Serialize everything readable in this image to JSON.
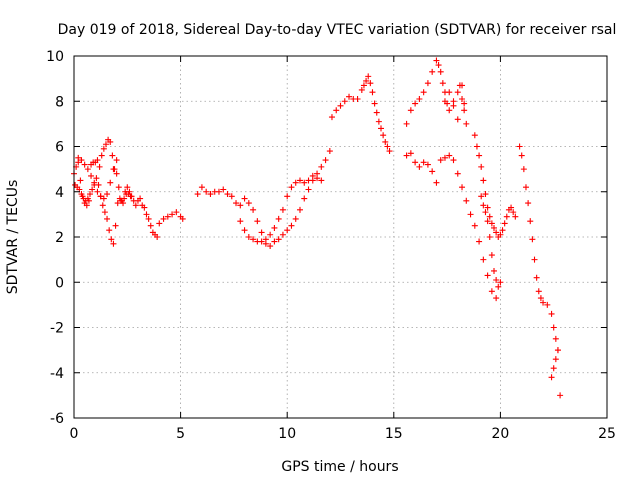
{
  "chart_data": {
    "type": "scatter",
    "title": "Day 019 of 2018, Sidereal Day-to-day VTEC variation (SDTVAR) for receiver rsal",
    "xlabel": "GPS time / hours",
    "ylabel": "SDTVAR / TECUs",
    "xlim": [
      0,
      25
    ],
    "ylim": [
      -6,
      10
    ],
    "x_ticks": [
      0,
      5,
      10,
      15,
      20,
      25
    ],
    "y_ticks": [
      -6,
      -4,
      -2,
      0,
      2,
      4,
      6,
      8,
      10
    ],
    "grid": true,
    "marker": "plus",
    "color": "#ff0000",
    "series": [
      {
        "x": [
          0.0,
          0.1,
          0.2,
          0.3,
          0.4,
          0.5,
          0.6,
          0.7,
          0.8,
          0.9,
          1.0,
          1.1,
          1.2,
          1.3,
          1.4,
          1.5,
          1.6,
          1.7,
          1.8,
          1.9,
          2.0,
          2.1,
          2.2,
          2.3,
          2.4,
          2.5,
          2.6,
          2.7,
          2.8,
          2.9,
          3.0,
          3.1,
          3.2,
          3.3,
          3.4,
          3.5,
          3.6,
          3.7,
          3.8,
          3.9,
          4.0,
          4.2,
          4.4,
          4.6,
          4.8,
          5.0,
          5.1
        ],
        "y": [
          4.8,
          5.1,
          5.3,
          4.5,
          3.8,
          3.5,
          3.4,
          3.6,
          5.2,
          5.3,
          5.3,
          5.4,
          5.1,
          5.6,
          5.9,
          6.1,
          6.3,
          6.2,
          5.6,
          5.0,
          4.8,
          4.2,
          3.6,
          3.5,
          4.0,
          4.2,
          4.0,
          3.8,
          3.6,
          3.4,
          3.6,
          3.7,
          3.4,
          3.3,
          3.0,
          2.8,
          2.5,
          2.2,
          2.1,
          2.0,
          2.6,
          2.8,
          2.9,
          3.0,
          3.1,
          2.9,
          2.8
        ]
      },
      {
        "x": [
          0.05,
          0.15,
          0.25,
          0.35,
          0.45,
          0.55,
          0.65,
          0.75,
          0.85,
          0.95,
          1.05,
          1.15,
          1.25,
          1.35,
          1.45,
          1.55,
          1.65,
          1.75,
          1.85,
          1.95,
          2.05,
          2.15,
          2.25,
          2.35,
          2.45,
          2.55,
          2.65
        ],
        "y": [
          4.3,
          4.2,
          4.1,
          3.9,
          3.7,
          3.6,
          3.7,
          3.9,
          4.1,
          4.3,
          4.6,
          4.3,
          3.8,
          3.4,
          3.1,
          2.8,
          2.3,
          1.9,
          1.7,
          2.5,
          3.5,
          3.7,
          3.6,
          3.7,
          3.9,
          3.9,
          3.8
        ]
      },
      {
        "x": [
          0.2,
          0.35,
          0.5,
          0.65,
          0.8,
          0.95,
          1.1,
          1.25,
          1.4,
          1.55,
          1.7,
          1.85,
          2.0
        ],
        "y": [
          5.5,
          5.4,
          5.2,
          5.0,
          4.7,
          4.4,
          4.0,
          3.8,
          3.7,
          3.9,
          4.4,
          5.0,
          5.4
        ]
      },
      {
        "x": [
          5.8,
          6.0,
          6.2,
          6.4,
          6.6,
          6.8,
          7.0,
          7.2,
          7.4,
          7.6,
          7.8,
          8.0,
          8.2,
          8.4,
          8.6,
          8.8,
          9.0,
          9.2,
          9.4,
          9.6,
          9.8,
          10.0,
          10.2,
          10.4,
          10.6,
          10.8,
          11.0,
          11.2,
          11.4,
          11.6,
          11.8,
          12.0
        ],
        "y": [
          3.9,
          4.2,
          4.0,
          3.9,
          4.0,
          4.0,
          4.1,
          3.9,
          3.8,
          3.5,
          3.4,
          3.7,
          3.5,
          3.2,
          2.7,
          2.2,
          1.7,
          1.6,
          1.8,
          1.9,
          2.1,
          2.3,
          2.5,
          2.8,
          3.2,
          3.7,
          4.1,
          4.5,
          4.8,
          5.1,
          5.4,
          5.8
        ]
      },
      {
        "x": [
          7.8,
          8.0,
          8.2,
          8.4,
          8.6,
          8.8,
          9.0,
          9.2,
          9.4,
          9.6,
          9.8,
          10.0,
          10.2,
          10.4,
          10.6,
          10.8,
          11.0,
          11.2,
          11.4,
          11.6
        ],
        "y": [
          2.7,
          2.3,
          2.0,
          1.9,
          1.8,
          1.8,
          1.9,
          2.1,
          2.4,
          2.8,
          3.2,
          3.8,
          4.2,
          4.4,
          4.5,
          4.4,
          4.5,
          4.7,
          4.6,
          4.5
        ]
      },
      {
        "x": [
          12.1,
          12.3,
          12.5,
          12.7,
          12.9,
          13.1,
          13.3,
          13.5,
          13.6,
          13.7,
          13.8,
          13.9,
          14.0,
          14.1,
          14.2,
          14.3,
          14.4,
          14.5,
          14.6,
          14.7,
          14.8
        ],
        "y": [
          7.3,
          7.6,
          7.8,
          8.0,
          8.2,
          8.1,
          8.1,
          8.5,
          8.7,
          8.9,
          9.1,
          8.8,
          8.4,
          7.9,
          7.5,
          7.1,
          6.8,
          6.5,
          6.2,
          6.0,
          5.8
        ]
      },
      {
        "x": [
          15.6,
          15.8,
          16.0,
          16.2,
          16.4,
          16.6,
          16.8,
          17.0,
          17.1,
          17.2,
          17.3,
          17.4,
          17.5,
          17.6,
          17.8,
          18.0,
          18.2,
          18.3
        ],
        "y": [
          7.0,
          7.6,
          7.9,
          8.1,
          8.4,
          8.8,
          9.3,
          9.8,
          9.6,
          9.3,
          8.8,
          8.4,
          7.9,
          7.6,
          8.0,
          8.4,
          8.7,
          7.9
        ]
      },
      {
        "x": [
          15.6,
          15.8,
          16.0,
          16.2,
          16.4,
          16.6,
          16.8,
          17.0,
          17.2,
          17.4,
          17.6,
          17.8,
          18.0,
          18.2,
          18.4,
          18.6,
          18.8,
          19.0,
          19.2,
          19.4,
          19.6,
          19.8
        ],
        "y": [
          5.6,
          5.7,
          5.3,
          5.1,
          5.3,
          5.2,
          4.9,
          4.4,
          5.4,
          5.5,
          5.6,
          5.4,
          4.8,
          4.2,
          3.6,
          3.0,
          2.5,
          1.8,
          1.0,
          0.3,
          -0.4,
          -0.7
        ]
      },
      {
        "x": [
          17.4,
          17.6,
          17.8,
          18.0,
          18.1,
          18.2,
          18.3,
          18.4
        ],
        "y": [
          8.0,
          8.4,
          7.8,
          7.2,
          8.7,
          8.1,
          7.6,
          7.0
        ]
      },
      {
        "x": [
          18.8,
          18.9,
          19.0,
          19.1,
          19.2,
          19.3,
          19.4,
          19.5,
          19.6,
          19.7,
          19.8,
          19.9,
          20.0,
          20.1,
          20.2,
          20.3,
          20.4,
          20.5,
          20.6,
          20.7
        ],
        "y": [
          6.5,
          6.0,
          5.6,
          5.1,
          4.5,
          3.9,
          3.3,
          2.9,
          2.6,
          2.4,
          2.2,
          2.0,
          2.1,
          2.3,
          2.6,
          2.9,
          3.2,
          3.3,
          3.1,
          2.9
        ]
      },
      {
        "x": [
          19.1,
          19.2,
          19.3,
          19.4,
          19.5,
          19.6,
          19.7,
          19.8,
          19.9,
          20.0
        ],
        "y": [
          3.8,
          3.4,
          3.1,
          2.7,
          2.0,
          1.2,
          0.5,
          0.1,
          -0.2,
          0.0
        ]
      },
      {
        "x": [
          20.9,
          21.0,
          21.1,
          21.2,
          21.3,
          21.4,
          21.5,
          21.6,
          21.7,
          21.8,
          21.9,
          22.0,
          22.2,
          22.4,
          22.5,
          22.6,
          22.7,
          22.8
        ],
        "y": [
          6.0,
          5.6,
          5.0,
          4.2,
          3.5,
          2.7,
          1.9,
          1.0,
          0.2,
          -0.4,
          -0.7,
          -0.9,
          -1.0,
          -1.4,
          -2.0,
          -2.5,
          -3.0,
          -5.0
        ]
      },
      {
        "x": [
          22.4,
          22.5,
          22.6,
          22.7
        ],
        "y": [
          -4.2,
          -3.8,
          -3.4,
          -3.0
        ]
      }
    ]
  }
}
